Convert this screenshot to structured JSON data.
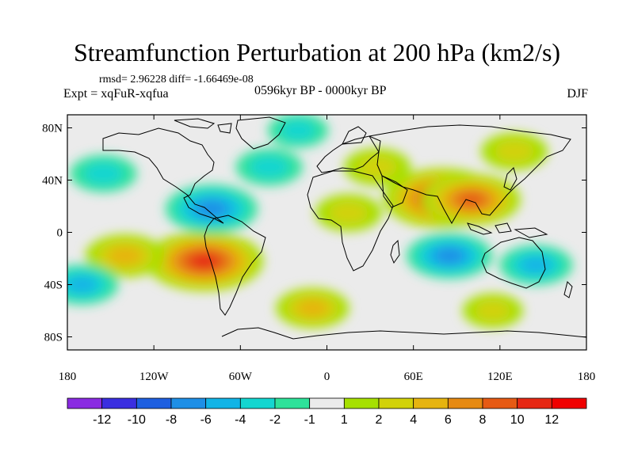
{
  "title": "Streamfunction Perturbation at 200 hPa (km2/s)",
  "stats": "rmsd= 2.96228 diff= -1.66469e-08",
  "experiment": "Expt = xqFuR-xqfua",
  "period": "0596kyr BP - 0000kyr BP",
  "season": "DJF",
  "map": {
    "background_color": "#ebebeb",
    "lon_ticks": [
      "180",
      "120W",
      "60W",
      "0",
      "60E",
      "120E",
      "180"
    ],
    "lat_ticks": [
      "80N",
      "40N",
      "0",
      "40S",
      "80S"
    ],
    "anomalies": [
      {
        "name": "south-america-high",
        "lon": -85,
        "lat": -22,
        "value": 11
      },
      {
        "name": "south-pacific-high-west",
        "lon": -140,
        "lat": -18,
        "value": 5
      },
      {
        "name": "caribbean-low",
        "lon": -80,
        "lat": 18,
        "value": -7
      },
      {
        "name": "north-pacific-low",
        "lon": -155,
        "lat": 45,
        "value": -3
      },
      {
        "name": "india-high",
        "lon": 80,
        "lat": 26,
        "value": 11
      },
      {
        "name": "china-high",
        "lon": 100,
        "lat": 25,
        "value": 8
      },
      {
        "name": "indian-ocean-low",
        "lon": 85,
        "lat": -18,
        "value": -6
      },
      {
        "name": "australia-low",
        "lon": 145,
        "lat": -25,
        "value": -4
      },
      {
        "name": "north-atlantic-low",
        "lon": -40,
        "lat": 50,
        "value": -3
      },
      {
        "name": "africa-high",
        "lon": 15,
        "lat": 15,
        "value": 3
      },
      {
        "name": "europe-high",
        "lon": 35,
        "lat": 50,
        "value": 3
      },
      {
        "name": "siberia-high",
        "lon": 130,
        "lat": 62,
        "value": 3
      },
      {
        "name": "southern-ocean-high",
        "lon": -10,
        "lat": -58,
        "value": 4
      },
      {
        "name": "southern-ocean-high-east",
        "lon": 115,
        "lat": -60,
        "value": 2
      },
      {
        "name": "arctic-low",
        "lon": -20,
        "lat": 78,
        "value": -2
      },
      {
        "name": "south-pacific-low",
        "lon": -170,
        "lat": -40,
        "value": -4
      }
    ]
  },
  "colorbar": {
    "labels": [
      "-12",
      "-10",
      "-8",
      "-6",
      "-4",
      "-2",
      "-1",
      "1",
      "2",
      "4",
      "6",
      "8",
      "10",
      "12"
    ],
    "colors": [
      "#8a2be2",
      "#3a2ee0",
      "#1e5fe0",
      "#1e8fe6",
      "#12b4e6",
      "#14d6d0",
      "#2ee29a",
      "#ebebeb",
      "#a6e000",
      "#d2d20a",
      "#e6b410",
      "#e68a12",
      "#e65a14",
      "#e62814",
      "#f00000"
    ]
  }
}
